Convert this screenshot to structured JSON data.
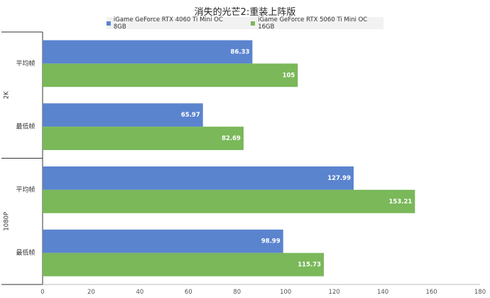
{
  "chart_data": {
    "type": "bar",
    "orientation": "horizontal",
    "title": "消失的光芒2:重装上阵版",
    "groups": [
      {
        "label": "2K",
        "categories": [
          "平均帧",
          "最低帧"
        ]
      },
      {
        "label": "1080P",
        "categories": [
          "平均帧",
          "最低帧"
        ]
      }
    ],
    "series": [
      {
        "name": "iGame GeForce RTX 4060 Ti Mini OC 8GB",
        "color": "#5b84cf",
        "values": [
          86.33,
          65.97,
          127.99,
          98.99
        ]
      },
      {
        "name": "iGame GeForce RTX 5060 Ti Mini OC 16GB",
        "color": "#7ab85a",
        "values": [
          105,
          82.69,
          153.21,
          115.73
        ]
      }
    ],
    "value_labels": [
      [
        "86.33",
        "65.97",
        "127.99",
        "98.99"
      ],
      [
        "105",
        "82.69",
        "153.21",
        "115.73"
      ]
    ],
    "xlim": [
      0,
      180
    ],
    "xticks": [
      "0",
      "20",
      "40",
      "60",
      "80",
      "100",
      "120",
      "140",
      "160",
      "180"
    ],
    "grid": false,
    "legend_position": "top"
  }
}
